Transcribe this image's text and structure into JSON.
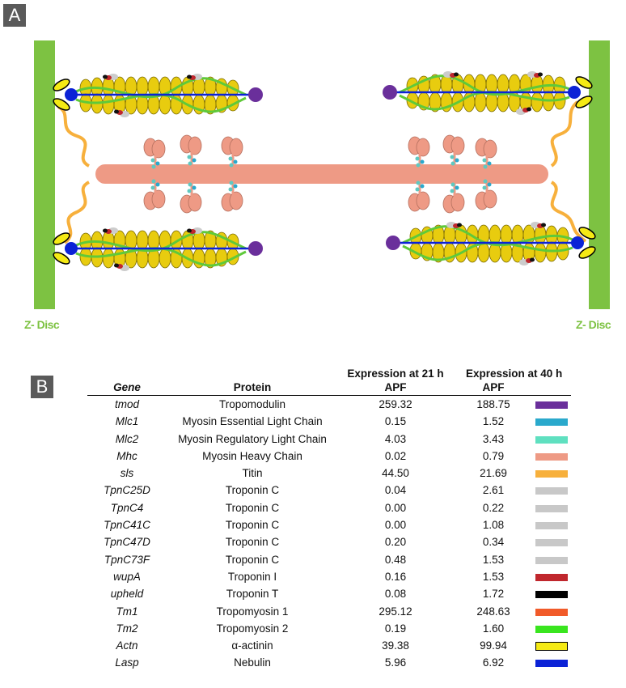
{
  "panel_a": {
    "tag": "A",
    "z_disc_label_left": "Z- Disc",
    "z_disc_label_right": "Z- Disc"
  },
  "panel_b": {
    "tag": "B",
    "headers": {
      "gene": "Gene",
      "protein": "Protein",
      "expr21_line1": "Expression at 21 h",
      "expr21_line2": "APF",
      "expr40_line1": "Expression at 40 h",
      "expr40_line2": "APF"
    },
    "rows": [
      {
        "gene": "tmod",
        "protein": "Tropomodulin",
        "e21": "259.32",
        "e40": "188.75",
        "color": "#6a2f9b"
      },
      {
        "gene": "Mlc1",
        "protein": "Myosin Essential Light Chain",
        "e21": "0.15",
        "e40": "1.52",
        "color": "#2aa9cc"
      },
      {
        "gene": "Mlc2",
        "protein": "Myosin Regulatory Light Chain",
        "e21": "4.03",
        "e40": "3.43",
        "color": "#5fe0c0"
      },
      {
        "gene": "Mhc",
        "protein": "Myosin Heavy Chain",
        "e21": "0.02",
        "e40": "0.79",
        "color": "#ee9a85"
      },
      {
        "gene": "sls",
        "protein": "Titin",
        "e21": "44.50",
        "e40": "21.69",
        "color": "#f7b03c"
      },
      {
        "gene": "TpnC25D",
        "protein": "Troponin C",
        "e21": "0.04",
        "e40": "2.61",
        "color": "#c8c8c8"
      },
      {
        "gene": "TpnC4",
        "protein": "Troponin C",
        "e21": "0.00",
        "e40": "0.22",
        "color": "#c8c8c8"
      },
      {
        "gene": "TpnC41C",
        "protein": "Troponin C",
        "e21": "0.00",
        "e40": "1.08",
        "color": "#c8c8c8"
      },
      {
        "gene": "TpnC47D",
        "protein": "Troponin C",
        "e21": "0.20",
        "e40": "0.34",
        "color": "#c8c8c8"
      },
      {
        "gene": "TpnC73F",
        "protein": "Troponin C",
        "e21": "0.48",
        "e40": "1.53",
        "color": "#c8c8c8"
      },
      {
        "gene": "wupA",
        "protein": "Troponin I",
        "e21": "0.16",
        "e40": "1.53",
        "color": "#c0272d"
      },
      {
        "gene": "upheld",
        "protein": "Troponin T",
        "e21": "0.08",
        "e40": "1.72",
        "color": "#000000"
      },
      {
        "gene": "Tm1",
        "protein": "Tropomyosin 1",
        "e21": "295.12",
        "e40": "248.63",
        "color": "#f15a29"
      },
      {
        "gene": "Tm2",
        "protein": "Tropomyosin 2",
        "e21": "0.19",
        "e40": "1.60",
        "color": "#39e51f"
      },
      {
        "gene": "Actn",
        "protein": "α-actinin",
        "e21": "39.38",
        "e40": "99.94",
        "color": "#f5ea14",
        "outlined": true
      },
      {
        "gene": "Lasp",
        "protein": "Nebulin",
        "e21": "5.96",
        "e40": "6.92",
        "color": "#0b22d6"
      }
    ]
  },
  "colors": {
    "z_disc": "#7dc242",
    "actin_bead": "#e8cc0f",
    "myosin": "#ee9a85",
    "titin": "#f7b03c",
    "tropomodulin": "#6a2f9b",
    "nebulin": "#0b22d6",
    "tropomyosin": "#5fc93a",
    "light_chain": "#5fc8c0"
  }
}
